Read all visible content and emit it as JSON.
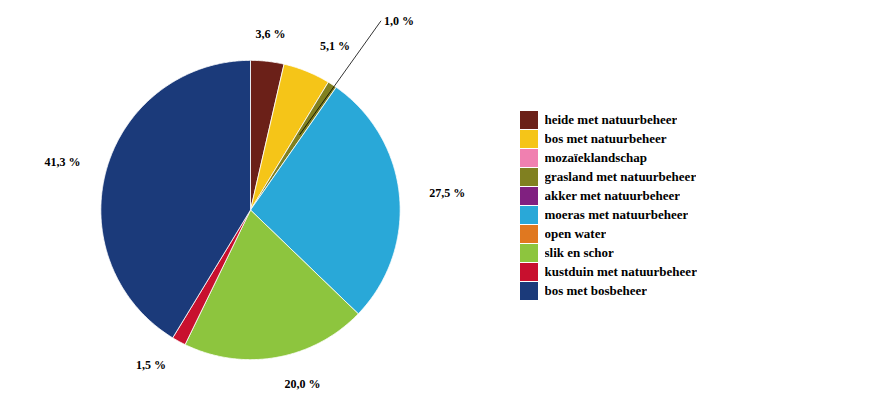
{
  "chart_data": {
    "type": "pie",
    "categories": [
      "heide met natuurbeheer",
      "bos met natuurbeheer",
      "mozaïeklandschap",
      "grasland met natuurbeheer",
      "akker met natuurbeheer",
      "moeras met natuurbeheer",
      "open water",
      "slik en schor",
      "kustduin met natuurbeheer",
      "bos met bosbeheer"
    ],
    "values": [
      3.6,
      5.1,
      null,
      1.0,
      null,
      27.5,
      null,
      20.0,
      1.5,
      41.3
    ],
    "value_labels": [
      "3,6 %",
      "5,1 %",
      null,
      "1,0 %",
      null,
      "27,5 %",
      null,
      "20,0 %",
      "1,5 %",
      "41,3 %"
    ],
    "colors": [
      "#6B2018",
      "#F5C518",
      "#F080B0",
      "#808020",
      "#802080",
      "#29A8D8",
      "#E07820",
      "#8DC53E",
      "#C8102E",
      "#1B3A7A"
    ],
    "data_labels": true,
    "legend": "right"
  }
}
